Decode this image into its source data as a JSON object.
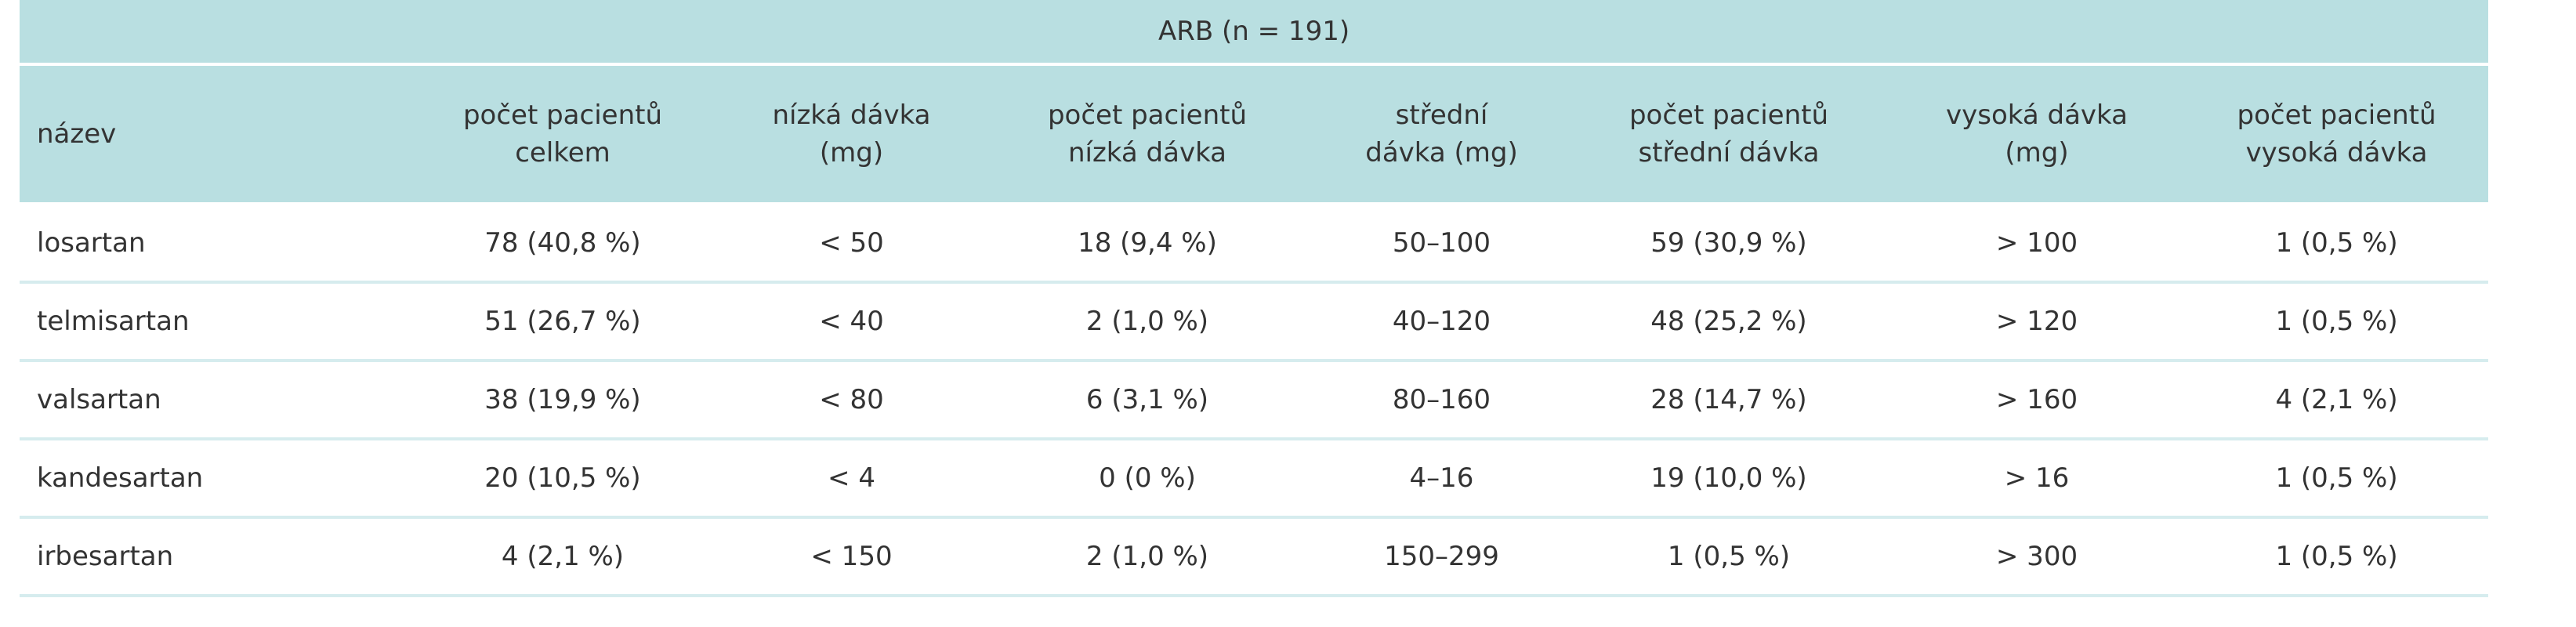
{
  "header": {
    "title": "ARB (n = 191)"
  },
  "table": {
    "columns": [
      [
        "název"
      ],
      [
        "počet pacientů",
        "celkem"
      ],
      [
        "nízká dávka",
        "(mg)"
      ],
      [
        "počet pacientů",
        "nízká dávka"
      ],
      [
        "střední",
        "dávka (mg)"
      ],
      [
        "počet pacientů",
        "střední dávka"
      ],
      [
        "vysoká dávka",
        "(mg)"
      ],
      [
        "počet pacientů",
        "vysoká dávka"
      ]
    ],
    "rows": [
      [
        "losartan",
        "78 (40,8 %)",
        "< 50",
        "18 (9,4 %)",
        "50–100",
        "59 (30,9 %)",
        "> 100",
        "1 (0,5 %)"
      ],
      [
        "telmisartan",
        "51 (26,7 %)",
        "< 40",
        "2 (1,0 %)",
        "40–120",
        "48 (25,2 %)",
        "> 120",
        "1 (0,5 %)"
      ],
      [
        "valsartan",
        "38 (19,9 %)",
        "< 80",
        "6 (3,1 %)",
        "80–160",
        "28 (14,7 %)",
        "> 160",
        "4 (2,1 %)"
      ],
      [
        "kandesartan",
        "20 (10,5 %)",
        "< 4",
        "0 (0 %)",
        "4–16",
        "19 (10,0 %)",
        "> 16",
        "1 (0,5 %)"
      ],
      [
        "irbesartan",
        "4 (2,1 %)",
        "< 150",
        "2 (1,0 %)",
        "150–299",
        "1 (0,5 %)",
        "> 300",
        "1 (0,5 %)"
      ]
    ]
  }
}
